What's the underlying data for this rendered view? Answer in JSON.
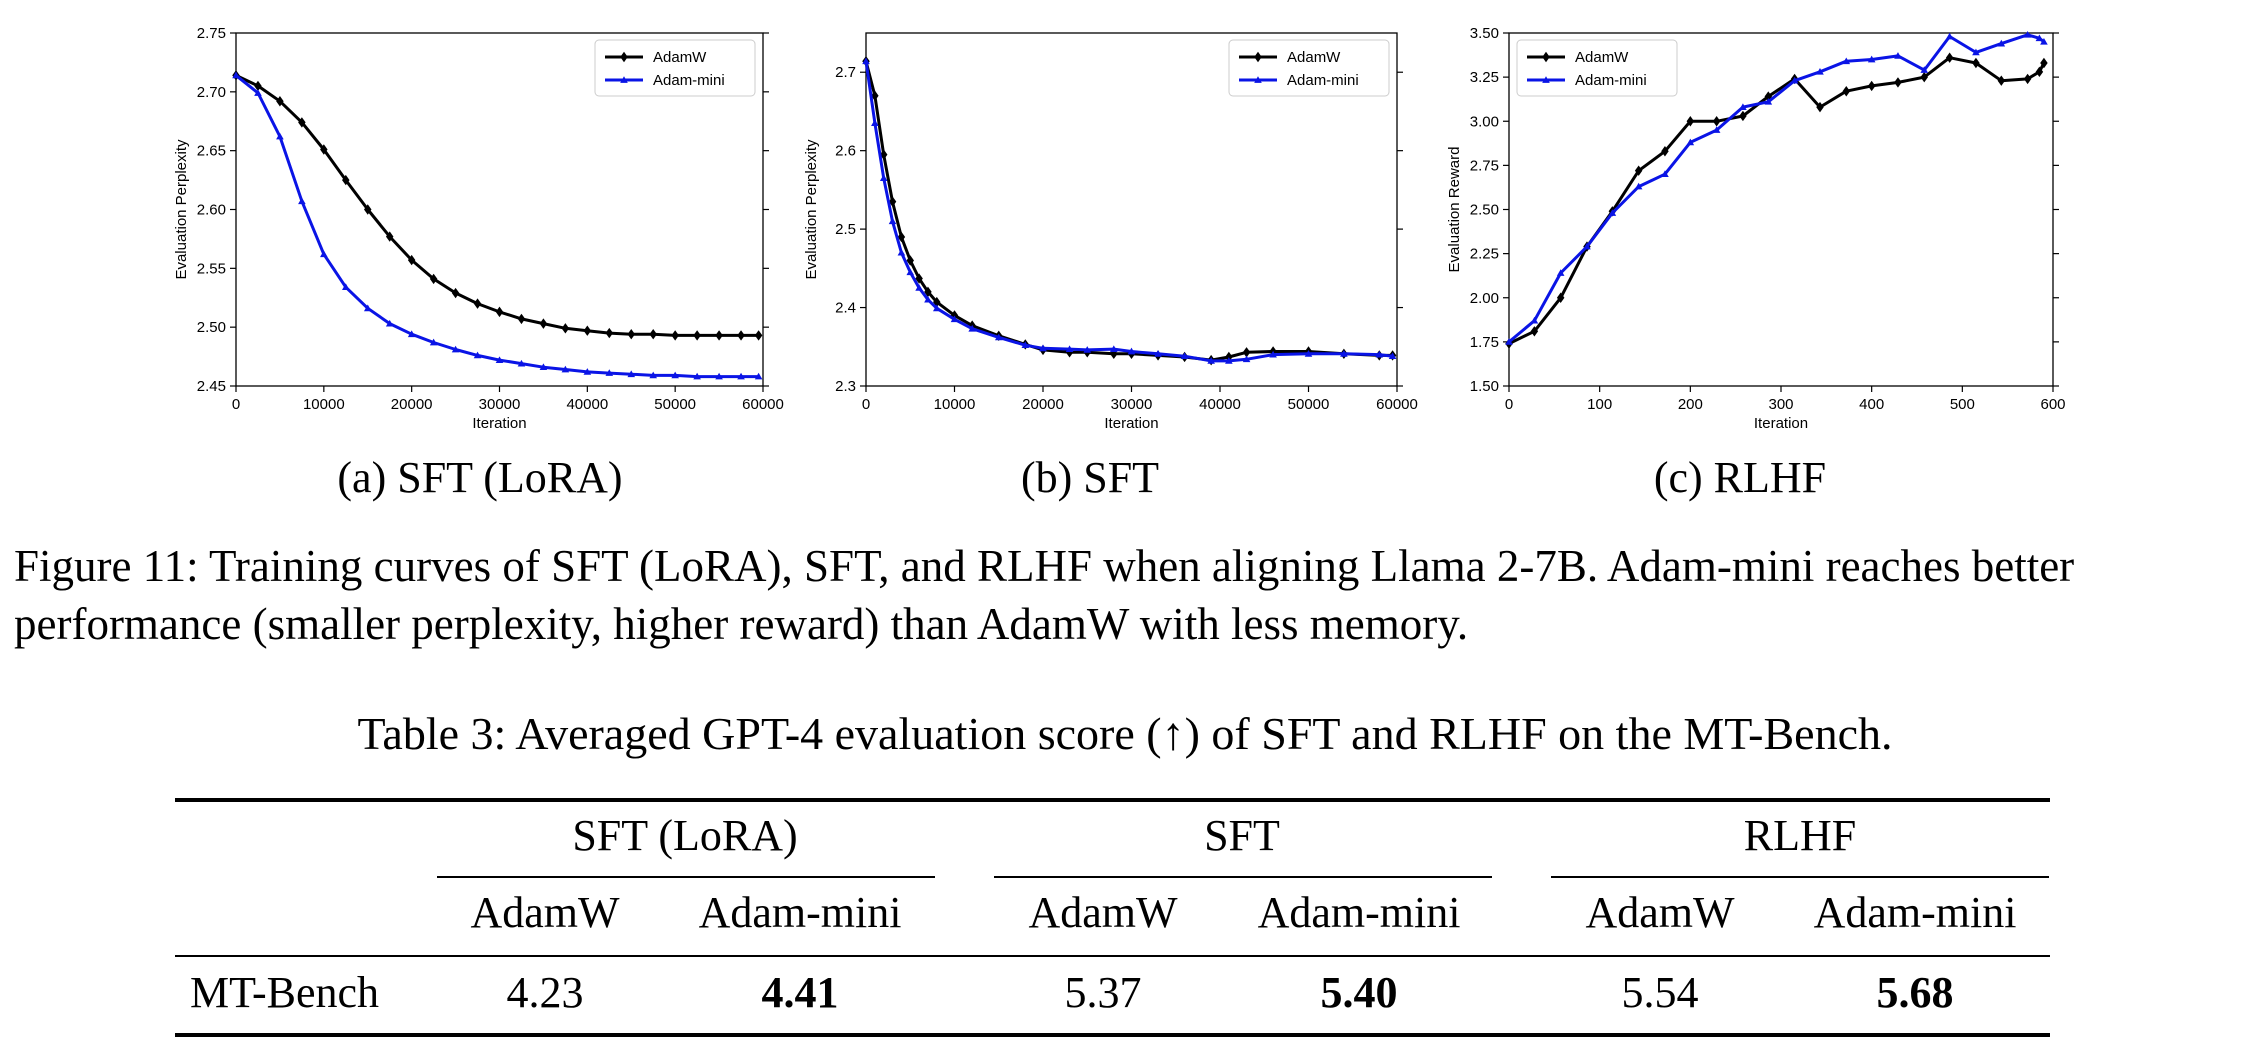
{
  "colors": {
    "adamw": "#000000",
    "adam_mini": "#0a14e6"
  },
  "figure": {
    "caption_label": "Figure 11:",
    "caption_text": "Training curves of SFT (LoRA), SFT, and RLHF when aligning Llama 2-7B. Adam-mini reaches better performance (smaller perplexity, higher reward) than AdamW with less memory.",
    "panels": [
      {
        "caption": "(a)  SFT (LoRA)"
      },
      {
        "caption": "(b)  SFT"
      },
      {
        "caption": "(c)  RLHF"
      }
    ]
  },
  "chart_data": [
    {
      "type": "line",
      "xlabel": "Iteration",
      "ylabel": "Evaluation Perplexity",
      "xlim": [
        0,
        60000
      ],
      "ylim": [
        2.45,
        2.75
      ],
      "xticks": [
        0,
        10000,
        20000,
        30000,
        40000,
        50000,
        60000
      ],
      "yticks": [
        2.45,
        2.5,
        2.55,
        2.6,
        2.65,
        2.7,
        2.75
      ],
      "ytick_labels": [
        "2.45",
        "2.50",
        "2.55",
        "2.60",
        "2.65",
        "2.70",
        "2.75"
      ],
      "grid": false,
      "legend": "top-right",
      "series": [
        {
          "name": "AdamW",
          "marker": "diamond",
          "x": [
            0,
            2500,
            5000,
            7500,
            10000,
            12500,
            15000,
            17500,
            20000,
            22500,
            25000,
            27500,
            30000,
            32500,
            35000,
            37500,
            40000,
            42500,
            45000,
            47500,
            50000,
            52500,
            55000,
            57500,
            59500
          ],
          "y": [
            2.714,
            2.705,
            2.692,
            2.674,
            2.651,
            2.625,
            2.6,
            2.577,
            2.557,
            2.541,
            2.529,
            2.52,
            2.513,
            2.507,
            2.503,
            2.499,
            2.497,
            2.495,
            2.494,
            2.494,
            2.493,
            2.493,
            2.493,
            2.493,
            2.493
          ]
        },
        {
          "name": "Adam-mini",
          "marker": "triangle",
          "x": [
            0,
            2500,
            5000,
            7500,
            10000,
            12500,
            15000,
            17500,
            20000,
            22500,
            25000,
            27500,
            30000,
            32500,
            35000,
            37500,
            40000,
            42500,
            45000,
            47500,
            50000,
            52500,
            55000,
            57500,
            59500
          ],
          "y": [
            2.714,
            2.699,
            2.662,
            2.607,
            2.562,
            2.534,
            2.516,
            2.503,
            2.494,
            2.487,
            2.481,
            2.476,
            2.472,
            2.469,
            2.466,
            2.464,
            2.462,
            2.461,
            2.46,
            2.459,
            2.459,
            2.458,
            2.458,
            2.458,
            2.458
          ]
        }
      ]
    },
    {
      "type": "line",
      "xlabel": "Iteration",
      "ylabel": "Evaluation Perplexity",
      "xlim": [
        0,
        60000
      ],
      "ylim": [
        2.3,
        2.75
      ],
      "xticks": [
        0,
        10000,
        20000,
        30000,
        40000,
        50000,
        60000
      ],
      "yticks": [
        2.3,
        2.4,
        2.5,
        2.6,
        2.7
      ],
      "ytick_labels": [
        "2.3",
        "2.4",
        "2.5",
        "2.6",
        "2.7"
      ],
      "grid": false,
      "legend": "top-right",
      "series": [
        {
          "name": "AdamW",
          "marker": "diamond",
          "x": [
            0,
            1000,
            2000,
            3000,
            4000,
            5000,
            6000,
            7000,
            8000,
            10000,
            12000,
            15000,
            18000,
            20000,
            23000,
            25000,
            28000,
            30000,
            33000,
            36000,
            39000,
            41000,
            43000,
            46000,
            50000,
            54000,
            58000,
            59500
          ],
          "y": [
            2.714,
            2.67,
            2.595,
            2.535,
            2.49,
            2.46,
            2.437,
            2.42,
            2.407,
            2.39,
            2.377,
            2.364,
            2.353,
            2.346,
            2.343,
            2.343,
            2.341,
            2.341,
            2.339,
            2.337,
            2.333,
            2.337,
            2.343,
            2.344,
            2.344,
            2.341,
            2.339,
            2.339
          ]
        },
        {
          "name": "Adam-mini",
          "marker": "triangle",
          "x": [
            0,
            1000,
            2000,
            3000,
            4000,
            5000,
            6000,
            7000,
            8000,
            10000,
            12000,
            15000,
            18000,
            20000,
            23000,
            25000,
            28000,
            30000,
            33000,
            36000,
            39000,
            41000,
            43000,
            46000,
            50000,
            54000,
            58000,
            59500
          ],
          "y": [
            2.714,
            2.635,
            2.565,
            2.51,
            2.47,
            2.445,
            2.425,
            2.41,
            2.399,
            2.385,
            2.373,
            2.362,
            2.352,
            2.348,
            2.347,
            2.346,
            2.347,
            2.344,
            2.341,
            2.338,
            2.332,
            2.332,
            2.334,
            2.34,
            2.341,
            2.341,
            2.34,
            2.338
          ]
        }
      ]
    },
    {
      "type": "line",
      "xlabel": "Iteration",
      "ylabel": "Evaluation Reward",
      "xlim": [
        0,
        600
      ],
      "ylim": [
        1.5,
        3.5
      ],
      "xticks": [
        0,
        100,
        200,
        300,
        400,
        500,
        600
      ],
      "yticks": [
        1.5,
        1.75,
        2.0,
        2.25,
        2.5,
        2.75,
        3.0,
        3.25,
        3.5
      ],
      "ytick_labels": [
        "1.50",
        "1.75",
        "2.00",
        "2.25",
        "2.50",
        "2.75",
        "3.00",
        "3.25",
        "3.50"
      ],
      "grid": false,
      "legend": "top-left",
      "series": [
        {
          "name": "AdamW",
          "marker": "diamond",
          "x": [
            0,
            28,
            57,
            86,
            114,
            143,
            172,
            200,
            229,
            258,
            286,
            315,
            343,
            372,
            400,
            429,
            458,
            486,
            515,
            543,
            572,
            585,
            590
          ],
          "y": [
            1.74,
            1.81,
            2.0,
            2.29,
            2.49,
            2.72,
            2.83,
            3.0,
            3.0,
            3.03,
            3.14,
            3.24,
            3.08,
            3.17,
            3.2,
            3.22,
            3.25,
            3.36,
            3.33,
            3.23,
            3.24,
            3.28,
            3.33
          ]
        },
        {
          "name": "Adam-mini",
          "marker": "triangle",
          "x": [
            0,
            28,
            57,
            86,
            114,
            143,
            172,
            200,
            229,
            258,
            286,
            315,
            343,
            372,
            400,
            429,
            458,
            486,
            515,
            543,
            572,
            585,
            590
          ],
          "y": [
            1.75,
            1.87,
            2.14,
            2.29,
            2.48,
            2.63,
            2.7,
            2.88,
            2.95,
            3.08,
            3.11,
            3.23,
            3.28,
            3.34,
            3.35,
            3.37,
            3.29,
            3.48,
            3.39,
            3.44,
            3.49,
            3.47,
            3.45
          ]
        }
      ]
    }
  ],
  "table": {
    "caption_label": "Table 3:",
    "caption_text": "Averaged GPT-4 evaluation score (↑) of SFT and RLHF on the MT-Bench.",
    "groups": [
      "SFT (LoRA)",
      "SFT",
      "RLHF"
    ],
    "subheaders": [
      "AdamW",
      "Adam-mini"
    ],
    "row": {
      "label": "MT-Bench",
      "values": [
        "4.23",
        "4.41",
        "5.37",
        "5.40",
        "5.54",
        "5.68"
      ]
    }
  }
}
